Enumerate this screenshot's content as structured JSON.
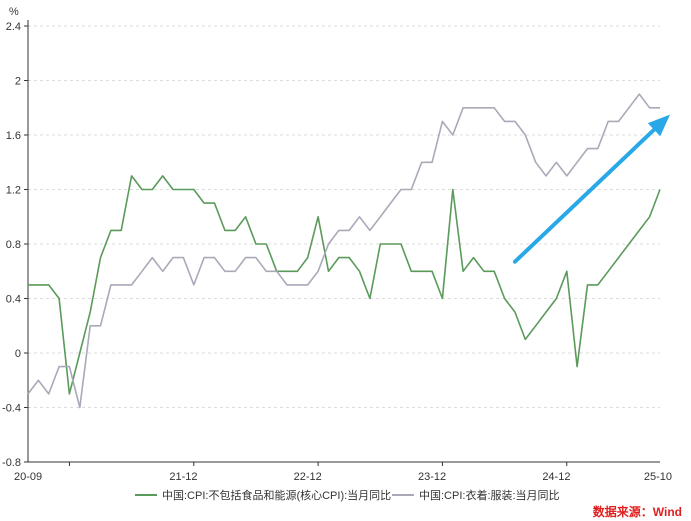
{
  "chart_data": {
    "type": "line",
    "yunit": "%",
    "ylim": [
      -0.8,
      2.4
    ],
    "yticks": [
      "2.4",
      "2",
      "1.6",
      "1.2",
      "0.8",
      "0.4",
      "0",
      "-0.4",
      "-0.8"
    ],
    "ytick_values": [
      2.4,
      2.0,
      1.6,
      1.2,
      0.8,
      0.4,
      0.0,
      -0.4,
      -0.8
    ],
    "x_start": "2020-09",
    "x_end": "2025-10",
    "x_ticks": [
      {
        "month": "2020-09",
        "label": "20-09"
      },
      {
        "month": "2021-12",
        "label": "21-12"
      },
      {
        "month": "2022-12",
        "label": "22-12"
      },
      {
        "month": "2023-12",
        "label": "23-12"
      },
      {
        "month": "2024-12",
        "label": "24-12"
      },
      {
        "month": "2025-10",
        "label": "25-10"
      }
    ],
    "grid": true,
    "legend_position": "bottom",
    "series": [
      {
        "name": "中国:CPI:不包括食品和能源(核心CPI):当月同比",
        "color": "#5a9a5a",
        "values": [
          [
            "2020-09",
            0.5
          ],
          [
            "2020-10",
            0.5
          ],
          [
            "2020-11",
            0.5
          ],
          [
            "2020-12",
            0.4
          ],
          [
            "2021-01",
            -0.3
          ],
          [
            "2021-02",
            0.0
          ],
          [
            "2021-03",
            0.3
          ],
          [
            "2021-04",
            0.7
          ],
          [
            "2021-05",
            0.9
          ],
          [
            "2021-06",
            0.9
          ],
          [
            "2021-07",
            1.3
          ],
          [
            "2021-08",
            1.2
          ],
          [
            "2021-09",
            1.2
          ],
          [
            "2021-10",
            1.3
          ],
          [
            "2021-11",
            1.2
          ],
          [
            "2021-12",
            1.2
          ],
          [
            "2022-01",
            1.2
          ],
          [
            "2022-02",
            1.1
          ],
          [
            "2022-03",
            1.1
          ],
          [
            "2022-04",
            0.9
          ],
          [
            "2022-05",
            0.9
          ],
          [
            "2022-06",
            1.0
          ],
          [
            "2022-07",
            0.8
          ],
          [
            "2022-08",
            0.8
          ],
          [
            "2022-09",
            0.6
          ],
          [
            "2022-10",
            0.6
          ],
          [
            "2022-11",
            0.6
          ],
          [
            "2022-12",
            0.7
          ],
          [
            "2023-01",
            1.0
          ],
          [
            "2023-02",
            0.6
          ],
          [
            "2023-03",
            0.7
          ],
          [
            "2023-04",
            0.7
          ],
          [
            "2023-05",
            0.6
          ],
          [
            "2023-06",
            0.4
          ],
          [
            "2023-07",
            0.8
          ],
          [
            "2023-08",
            0.8
          ],
          [
            "2023-09",
            0.8
          ],
          [
            "2023-10",
            0.6
          ],
          [
            "2023-11",
            0.6
          ],
          [
            "2023-12",
            0.6
          ],
          [
            "2024-01",
            0.4
          ],
          [
            "2024-02",
            1.2
          ],
          [
            "2024-03",
            0.6
          ],
          [
            "2024-04",
            0.7
          ],
          [
            "2024-05",
            0.6
          ],
          [
            "2024-06",
            0.6
          ],
          [
            "2024-07",
            0.4
          ],
          [
            "2024-08",
            0.3
          ],
          [
            "2024-09",
            0.1
          ],
          [
            "2024-10",
            0.2
          ],
          [
            "2024-11",
            0.3
          ],
          [
            "2024-12",
            0.4
          ],
          [
            "2025-01",
            0.6
          ],
          [
            "2025-02",
            -0.1
          ],
          [
            "2025-03",
            0.5
          ],
          [
            "2025-04",
            0.5
          ],
          [
            "2025-05",
            0.6
          ],
          [
            "2025-06",
            0.7
          ],
          [
            "2025-07",
            0.8
          ],
          [
            "2025-08",
            0.9
          ],
          [
            "2025-09",
            1.0
          ],
          [
            "2025-10",
            1.2
          ]
        ]
      },
      {
        "name": "中国:CPI:衣着:服装:当月同比",
        "color": "#a9a9b8",
        "values": [
          [
            "2020-09",
            -0.3
          ],
          [
            "2020-10",
            -0.2
          ],
          [
            "2020-11",
            -0.3
          ],
          [
            "2020-12",
            -0.1
          ],
          [
            "2021-01",
            -0.1
          ],
          [
            "2021-02",
            -0.4
          ],
          [
            "2021-03",
            0.2
          ],
          [
            "2021-04",
            0.2
          ],
          [
            "2021-05",
            0.5
          ],
          [
            "2021-06",
            0.5
          ],
          [
            "2021-07",
            0.5
          ],
          [
            "2021-08",
            0.6
          ],
          [
            "2021-09",
            0.7
          ],
          [
            "2021-10",
            0.6
          ],
          [
            "2021-11",
            0.7
          ],
          [
            "2021-12",
            0.7
          ],
          [
            "2022-01",
            0.5
          ],
          [
            "2022-02",
            0.7
          ],
          [
            "2022-03",
            0.7
          ],
          [
            "2022-04",
            0.6
          ],
          [
            "2022-05",
            0.6
          ],
          [
            "2022-06",
            0.7
          ],
          [
            "2022-07",
            0.7
          ],
          [
            "2022-08",
            0.6
          ],
          [
            "2022-09",
            0.6
          ],
          [
            "2022-10",
            0.5
          ],
          [
            "2022-11",
            0.5
          ],
          [
            "2022-12",
            0.5
          ],
          [
            "2023-01",
            0.6
          ],
          [
            "2023-02",
            0.8
          ],
          [
            "2023-03",
            0.9
          ],
          [
            "2023-04",
            0.9
          ],
          [
            "2023-05",
            1.0
          ],
          [
            "2023-06",
            0.9
          ],
          [
            "2023-07",
            1.0
          ],
          [
            "2023-08",
            1.1
          ],
          [
            "2023-09",
            1.2
          ],
          [
            "2023-10",
            1.2
          ],
          [
            "2023-11",
            1.4
          ],
          [
            "2023-12",
            1.4
          ],
          [
            "2024-01",
            1.7
          ],
          [
            "2024-02",
            1.6
          ],
          [
            "2024-03",
            1.8
          ],
          [
            "2024-04",
            1.8
          ],
          [
            "2024-05",
            1.8
          ],
          [
            "2024-06",
            1.8
          ],
          [
            "2024-07",
            1.7
          ],
          [
            "2024-08",
            1.7
          ],
          [
            "2024-09",
            1.6
          ],
          [
            "2024-10",
            1.4
          ],
          [
            "2024-11",
            1.3
          ],
          [
            "2024-12",
            1.4
          ],
          [
            "2025-01",
            1.3
          ],
          [
            "2025-02",
            1.4
          ],
          [
            "2025-03",
            1.5
          ],
          [
            "2025-04",
            1.5
          ],
          [
            "2025-05",
            1.7
          ],
          [
            "2025-06",
            1.7
          ],
          [
            "2025-07",
            1.8
          ],
          [
            "2025-08",
            1.9
          ],
          [
            "2025-09",
            1.8
          ],
          [
            "2025-10",
            1.8
          ]
        ]
      }
    ],
    "annotation": {
      "type": "arrow",
      "color": "#29a8e8",
      "from": [
        "2024-08",
        0.67
      ],
      "to": [
        "2025-10",
        1.75
      ]
    }
  },
  "source_text": "数据来源：Wind",
  "source_color": "#e02020",
  "axis_color": "#333333",
  "grid_color": "#dcdcdc"
}
